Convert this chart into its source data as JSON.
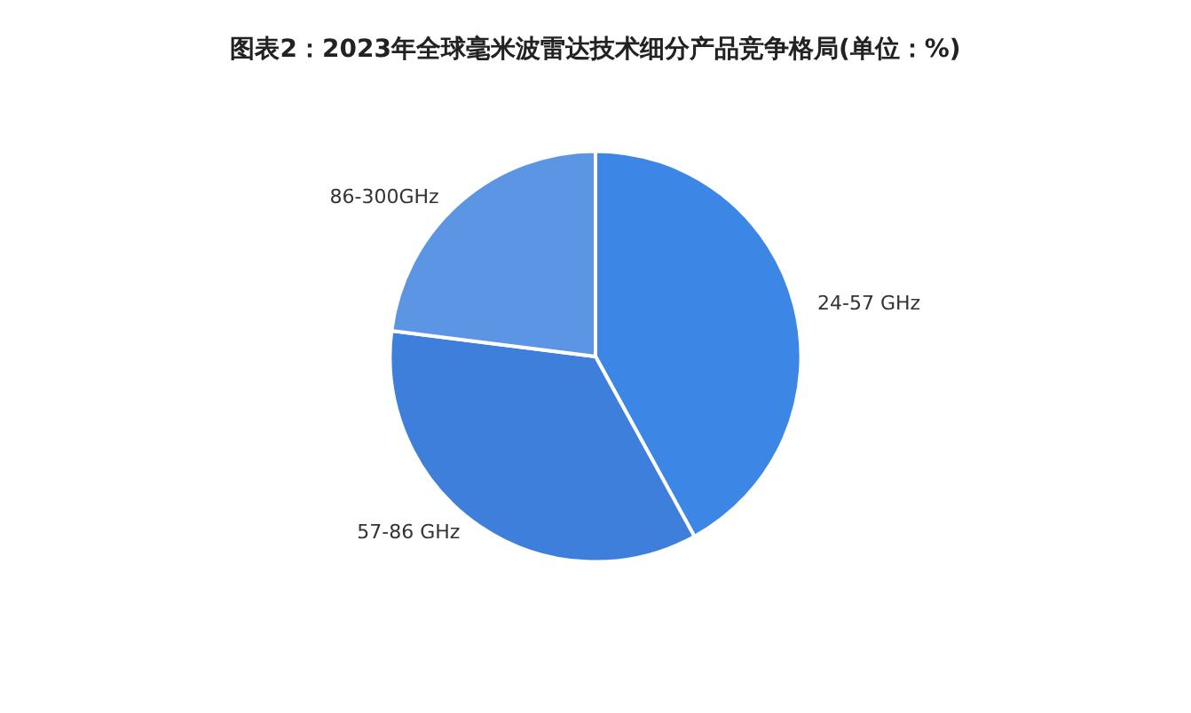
{
  "chart_data": {
    "type": "pie",
    "title": "图表2：2023年全球毫米波雷达技术细分产品竞争格局(单位：%)",
    "categories": [
      "24-57 GHz",
      "57-86 GHz",
      "86-300GHz"
    ],
    "values": [
      42,
      35,
      23
    ],
    "colors": [
      "#3c87e6",
      "#3f7fdc",
      "#5b95e4"
    ]
  }
}
